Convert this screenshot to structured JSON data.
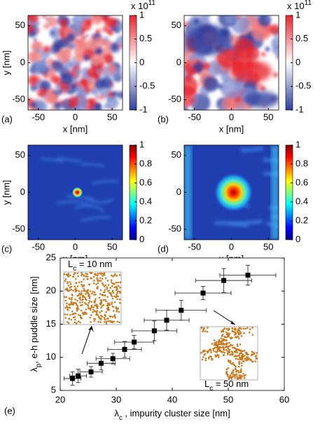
{
  "chart_data": [
    {
      "type": "heatmap",
      "panel_label": "(a)",
      "x_label": "x [nm]",
      "y_label": "y [nm]",
      "xlim": [
        -64,
        64
      ],
      "ylim": [
        -64,
        64
      ],
      "xticks": [
        -50,
        0,
        50
      ],
      "yticks": [
        -50,
        0,
        50
      ],
      "colormap": "bwr",
      "clim": [
        -1,
        1
      ],
      "colorbar_ticks": [
        -1,
        -0.5,
        0,
        0.5,
        1
      ],
      "colorbar_multiplier": "x 10",
      "colorbar_exponent": "11"
    },
    {
      "type": "heatmap",
      "panel_label": "(b)",
      "x_label": "x [nm]",
      "xlim": [
        -64,
        64
      ],
      "ylim": [
        -64,
        64
      ],
      "xticks": [
        -50,
        0,
        50
      ],
      "yticks": [
        -50,
        0,
        50
      ],
      "colormap": "bwr",
      "clim": [
        -1,
        1
      ],
      "colorbar_ticks": [
        -1,
        -0.5,
        0,
        0.5,
        1
      ],
      "colorbar_multiplier": "x 10",
      "colorbar_exponent": "11"
    },
    {
      "type": "heatmap",
      "panel_label": "(c)",
      "x_label": "x [nm]",
      "y_label": "y [nm]",
      "xlim": [
        -64,
        64
      ],
      "ylim": [
        -64,
        64
      ],
      "xticks": [
        -50,
        0,
        50
      ],
      "yticks": [
        -50,
        0,
        50
      ],
      "colormap": "jet",
      "clim": [
        0,
        1
      ],
      "colorbar_ticks": [
        0,
        0.2,
        0.4,
        0.6,
        0.8,
        1
      ]
    },
    {
      "type": "heatmap",
      "panel_label": "(d)",
      "x_label": "x [nm]",
      "xlim": [
        -64,
        64
      ],
      "ylim": [
        -64,
        64
      ],
      "xticks": [
        -50,
        0,
        50
      ],
      "yticks": [
        -50,
        0,
        50
      ],
      "colormap": "jet",
      "clim": [
        0,
        1
      ],
      "colorbar_ticks": [
        0,
        0.2,
        0.4,
        0.6,
        0.8,
        1
      ]
    },
    {
      "type": "scatter",
      "panel_label": "(e)",
      "x_label": {
        "base": "λ",
        "sub": "c",
        "text": " , impurity cluster size [nm]"
      },
      "y_label": {
        "base": "λ",
        "sub": "p",
        "text": ", e-h puddle size [nm]"
      },
      "xlim": [
        20,
        60
      ],
      "ylim": [
        5,
        25
      ],
      "xticks": [
        20,
        30,
        40,
        50,
        60
      ],
      "yticks": [
        5,
        10,
        15,
        20,
        25
      ],
      "color": "#000000",
      "x": [
        22.2,
        23.2,
        25.5,
        27.3,
        29.4,
        31.5,
        33.2,
        36.8,
        39.0,
        41.6,
        45.5,
        49.2,
        53.5
      ],
      "values": [
        6.8,
        7.2,
        7.8,
        9.1,
        9.8,
        11.2,
        12.3,
        14.0,
        15.6,
        17.1,
        19.7,
        21.6,
        22.4
      ],
      "xerr": [
        1.5,
        1.5,
        2,
        2.5,
        3,
        3,
        3.5,
        4,
        4,
        4.5,
        5,
        5,
        5
      ],
      "yerr": [
        1,
        1,
        0.8,
        1,
        0.8,
        1.2,
        1,
        1.5,
        1.5,
        1.5,
        1,
        1.8,
        1.5
      ],
      "annotations": [
        {
          "base": "L",
          "sub": "c",
          "text": " = 10 nm"
        },
        {
          "base": "L",
          "sub": "c",
          "text": " = 50 nm"
        }
      ]
    }
  ]
}
